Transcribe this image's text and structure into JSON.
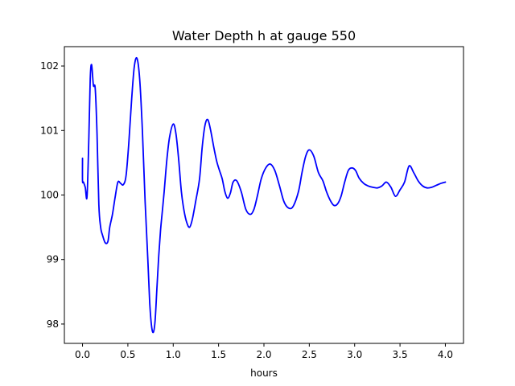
{
  "chart_data": {
    "type": "line",
    "title": "Water Depth h at gauge 550",
    "xlabel": "hours",
    "ylabel": "",
    "xlim": [
      -0.2,
      4.2
    ],
    "ylim": [
      97.7,
      102.3
    ],
    "xticks": [
      0.0,
      0.5,
      1.0,
      1.5,
      2.0,
      2.5,
      3.0,
      3.5,
      4.0
    ],
    "xtick_labels": [
      "0.0",
      "0.5",
      "1.0",
      "1.5",
      "2.0",
      "2.5",
      "3.0",
      "3.5",
      "4.0"
    ],
    "yticks": [
      98,
      99,
      100,
      101,
      102
    ],
    "ytick_labels": [
      "98",
      "99",
      "100",
      "101",
      "102"
    ],
    "grid": false,
    "line_color": "#0000ff",
    "series": [
      {
        "x": [
          0.0,
          0.0,
          0.01,
          0.03,
          0.05,
          0.07,
          0.085,
          0.1,
          0.12,
          0.14,
          0.16,
          0.18,
          0.2,
          0.22,
          0.25,
          0.28,
          0.3,
          0.33,
          0.36,
          0.39,
          0.42,
          0.45,
          0.48,
          0.51,
          0.54,
          0.57,
          0.6,
          0.63,
          0.66,
          0.69,
          0.72,
          0.74,
          0.76,
          0.78,
          0.8,
          0.82,
          0.84,
          0.86,
          0.88,
          0.9,
          0.93,
          0.96,
          1.0,
          1.03,
          1.06,
          1.09,
          1.12,
          1.15,
          1.18,
          1.21,
          1.25,
          1.29,
          1.32,
          1.35,
          1.38,
          1.41,
          1.45,
          1.48,
          1.51,
          1.54,
          1.57,
          1.6,
          1.63,
          1.66,
          1.7,
          1.75,
          1.8,
          1.85,
          1.89,
          1.93,
          1.97,
          2.02,
          2.07,
          2.12,
          2.17,
          2.22,
          2.27,
          2.32,
          2.38,
          2.42,
          2.46,
          2.5,
          2.55,
          2.6,
          2.65,
          2.69,
          2.73,
          2.77,
          2.81,
          2.85,
          2.89,
          2.93,
          2.97,
          3.01,
          3.05,
          3.1,
          3.15,
          3.2,
          3.25,
          3.3,
          3.35,
          3.4,
          3.45,
          3.5,
          3.55,
          3.6,
          3.65,
          3.7,
          3.75,
          3.8,
          3.85,
          3.9,
          3.95,
          4.0
        ],
        "values": [
          100.57,
          100.22,
          100.2,
          100.12,
          99.98,
          100.9,
          101.8,
          102.02,
          101.7,
          101.65,
          100.95,
          99.85,
          99.5,
          99.38,
          99.26,
          99.28,
          99.5,
          99.7,
          99.97,
          100.2,
          100.18,
          100.16,
          100.3,
          100.8,
          101.45,
          101.98,
          102.12,
          101.8,
          101.0,
          99.9,
          99.0,
          98.35,
          97.98,
          97.87,
          98.05,
          98.55,
          99.05,
          99.45,
          99.75,
          100.05,
          100.55,
          100.9,
          101.1,
          100.95,
          100.55,
          100.05,
          99.75,
          99.57,
          99.5,
          99.62,
          99.92,
          100.25,
          100.75,
          101.08,
          101.17,
          101.02,
          100.72,
          100.52,
          100.38,
          100.25,
          100.05,
          99.95,
          100.03,
          100.2,
          100.22,
          100.05,
          99.78,
          99.7,
          99.78,
          100.0,
          100.25,
          100.42,
          100.48,
          100.38,
          100.15,
          99.9,
          99.8,
          99.82,
          100.05,
          100.35,
          100.6,
          100.7,
          100.6,
          100.35,
          100.22,
          100.05,
          99.92,
          99.84,
          99.86,
          99.98,
          100.2,
          100.38,
          100.42,
          100.38,
          100.26,
          100.18,
          100.14,
          100.12,
          100.11,
          100.14,
          100.2,
          100.12,
          99.98,
          100.08,
          100.2,
          100.45,
          100.35,
          100.22,
          100.14,
          100.11,
          100.12,
          100.15,
          100.18,
          100.2
        ]
      }
    ]
  }
}
